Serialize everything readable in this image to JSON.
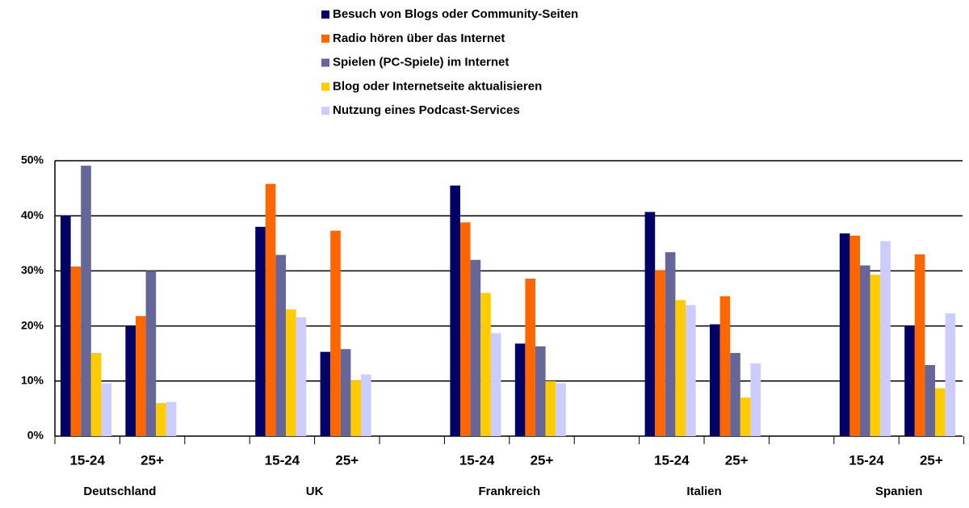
{
  "chart_data": {
    "type": "bar",
    "categories": [
      "15-24",
      "25+",
      null,
      "15-24",
      "25+",
      null,
      "15-24",
      "25+",
      null,
      "15-24",
      "25+",
      null,
      "15-24",
      "25+"
    ],
    "groups": [
      "Deutschland",
      "UK",
      "Frankreich",
      "Italien",
      "Spanien"
    ],
    "series": [
      {
        "name": "Besuch von Blogs oder Community-Seiten",
        "color": "#000066",
        "values": [
          40,
          20,
          null,
          38,
          15.3,
          null,
          45.5,
          16.8,
          null,
          40.7,
          20.3,
          null,
          36.8,
          20
        ]
      },
      {
        "name": "Radio hören über das Internet",
        "color": "#ff6600",
        "values": [
          30.8,
          21.8,
          null,
          45.8,
          37.3,
          null,
          38.8,
          28.6,
          null,
          30.1,
          25.4,
          null,
          36.4,
          33
        ]
      },
      {
        "name": "Spielen (PC-Spiele) im Internet",
        "color": "#666699",
        "values": [
          49.1,
          30,
          null,
          32.9,
          15.8,
          null,
          32,
          16.3,
          null,
          33.4,
          15.1,
          null,
          31,
          12.9
        ]
      },
      {
        "name": "Blog oder Internetseite aktualisieren",
        "color": "#ffcc00",
        "values": [
          15.1,
          6,
          null,
          23,
          10.1,
          null,
          26,
          10,
          null,
          24.7,
          7,
          null,
          29.3,
          8.7
        ]
      },
      {
        "name": "Nutzung eines Podcast-Services",
        "color": "#ccccff",
        "values": [
          9.6,
          6.2,
          null,
          21.6,
          11.2,
          null,
          18.7,
          9.6,
          null,
          23.8,
          13.2,
          null,
          35.4,
          22.3
        ]
      }
    ],
    "ylim": [
      0,
      50
    ],
    "yticks": [
      {
        "value": 0,
        "label": "0%"
      },
      {
        "value": 10,
        "label": "10%"
      },
      {
        "value": 20,
        "label": "20%"
      },
      {
        "value": 30,
        "label": "30%"
      },
      {
        "value": 40,
        "label": "40%"
      },
      {
        "value": 50,
        "label": "50%"
      }
    ],
    "grid": true
  }
}
